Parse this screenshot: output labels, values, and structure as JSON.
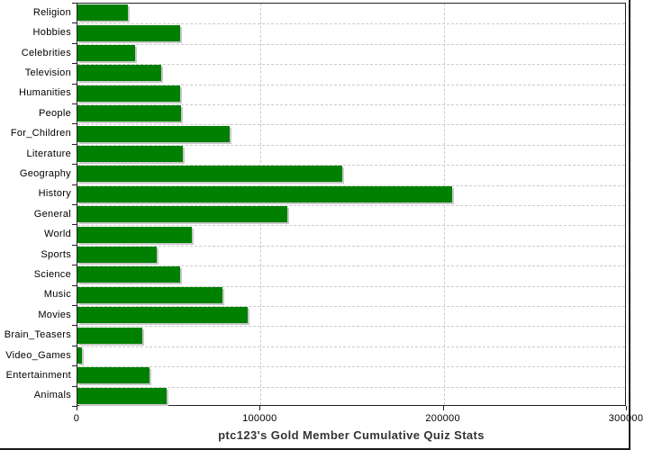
{
  "title": "ptc123's Gold Member Cumulative Quiz Stats",
  "colors": {
    "bar": "#008000",
    "bar_shadow": "#c9c9c9",
    "grid": "#cccccc",
    "axis": "#222222",
    "title_text": "#333333"
  },
  "chart_data": {
    "type": "bar",
    "orientation": "horizontal",
    "title": "ptc123's Gold Member Cumulative Quiz Stats",
    "xlabel": "",
    "ylabel": "",
    "grid": true,
    "legend_position": "none",
    "xlim": [
      0,
      300000
    ],
    "x_ticks": [
      0,
      100000,
      200000,
      300000
    ],
    "x_tick_labels": [
      "0",
      "100000",
      "200000",
      "300000"
    ],
    "categories": [
      "Religion",
      "Hobbies",
      "Celebrities",
      "Television",
      "Humanities",
      "People",
      "For_Children",
      "Literature",
      "Geography",
      "History",
      "General",
      "World",
      "Sports",
      "Science",
      "Music",
      "Movies",
      "Brain_Teasers",
      "Video_Games",
      "Entertainment",
      "Animals"
    ],
    "values": [
      27500,
      56000,
      31500,
      45500,
      56000,
      56500,
      83000,
      57500,
      144500,
      204500,
      114500,
      62500,
      43500,
      56000,
      79000,
      93000,
      35500,
      2500,
      39500,
      48500
    ]
  }
}
